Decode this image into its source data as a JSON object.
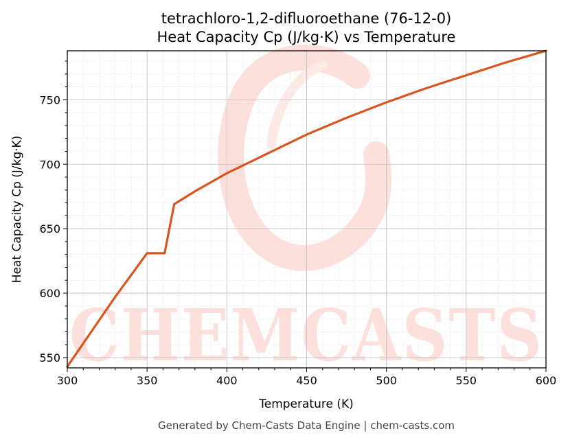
{
  "chart_data": {
    "type": "line",
    "title": "tetrachloro-1,2-difluoroethane (76-12-0)",
    "subtitle": "Heat Capacity Cp (J/kg·K) vs Temperature",
    "xlabel": "Temperature (K)",
    "ylabel": "Heat Capacity Cp (J/kg·K)",
    "xlim": [
      300,
      600
    ],
    "ylim": [
      542,
      788
    ],
    "xticks": [
      300,
      350,
      400,
      450,
      500,
      550,
      600
    ],
    "yticks": [
      550,
      600,
      650,
      700,
      750
    ],
    "grid": true,
    "series": [
      {
        "color": "#d9541e",
        "x": [
          300,
          310,
          320,
          330,
          340,
          350,
          361,
          367,
          380,
          400,
          425,
          450,
          475,
          500,
          525,
          550,
          575,
          600
        ],
        "y": [
          543,
          561,
          579,
          597,
          614,
          631,
          631,
          669,
          679,
          693,
          708,
          723,
          736,
          748,
          759,
          769,
          779,
          788
        ]
      }
    ]
  },
  "watermark": "CHEMCASTS",
  "footer": "Generated by Chem-Casts Data Engine | chem-casts.com"
}
